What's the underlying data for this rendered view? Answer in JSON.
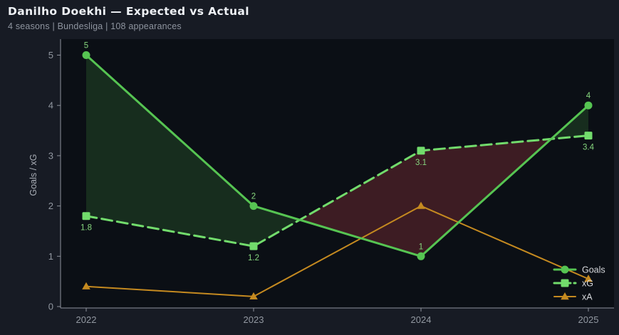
{
  "header": {
    "title": "Danilho Doekhi — Expected vs Actual",
    "subtitle": "4 seasons | Bundesliga | 108 appearances"
  },
  "chart_data": {
    "type": "line",
    "title": "Danilho Doekhi — Expected vs Actual",
    "subtitle": "4 seasons | Bundesliga | 108 appearances",
    "categories": [
      "2022",
      "2023",
      "2024",
      "2025"
    ],
    "series": [
      {
        "name": "Goals",
        "values": [
          5,
          2,
          1,
          4
        ],
        "labels": [
          "5",
          "2",
          "1",
          "4"
        ],
        "label_position": "above",
        "color": "#56c452",
        "label_color": "#86d67e",
        "line_style": "solid",
        "marker": "circle"
      },
      {
        "name": "xG",
        "values": [
          1.8,
          1.2,
          3.1,
          3.4
        ],
        "labels": [
          "1.8",
          "1.2",
          "3.1",
          "3.4"
        ],
        "label_position": "below",
        "color": "#72dc6c",
        "label_color": "#86d67e",
        "line_style": "dashed",
        "marker": "square"
      },
      {
        "name": "xA",
        "values": [
          0.4,
          0.2,
          2.0,
          0.55
        ],
        "labels": [],
        "label_position": "none",
        "color": "#c58a20",
        "label_color": "#c58a20",
        "line_style": "solid",
        "marker": "triangle"
      }
    ],
    "fill_between": {
      "upper": "Goals",
      "lower": "xG",
      "positive_color": "rgba(84,194,78,0.17)",
      "negative_color": "rgba(205,64,76,0.26)"
    },
    "xlabel": "",
    "ylabel": "Goals / xG",
    "yticks": [
      "0",
      "1",
      "2",
      "3",
      "4",
      "5"
    ],
    "ylim": [
      0,
      5.32
    ],
    "grid": false,
    "legend": {
      "position": "bottom-right",
      "entries": [
        "Goals",
        "xG",
        "xA"
      ]
    },
    "colors": {
      "figure_background": "#171b24",
      "plot_background": "#0b0f15",
      "spine": "#8d929b",
      "tick_label": "#9298a1",
      "axis_label": "#a9aeb6",
      "legend_text": "#d6d8dc",
      "title_text": "#eef1f5",
      "subtitle_text": "#8e949f"
    }
  }
}
